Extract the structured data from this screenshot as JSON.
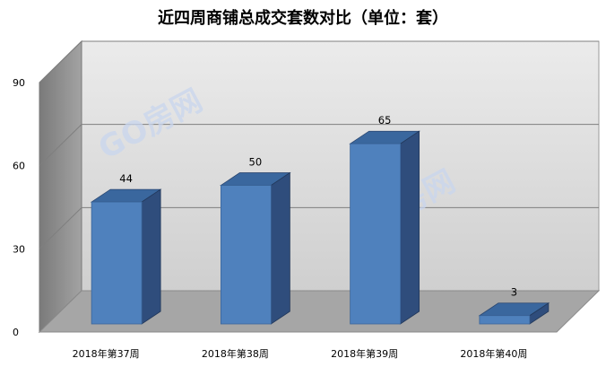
{
  "chart_data": {
    "type": "bar",
    "title": "近四周商铺总成交套数对比（单位：套）",
    "categories": [
      "2018年第37周",
      "2018年第38周",
      "2018年第39周",
      "2018年第40周"
    ],
    "values": [
      44,
      50,
      65,
      3
    ],
    "ylim": [
      0,
      90
    ],
    "yticks": [
      0,
      30,
      60,
      90
    ],
    "xlabel": "",
    "ylabel": "",
    "grid": true,
    "legend": "none",
    "style": "3d-bar",
    "colors": {
      "bar_front": "#4f81bd",
      "bar_side": "#2f4d7c",
      "bar_top": "#3a679e",
      "back_wall": "#d9d9d9",
      "side_wall": "#8c8c8c",
      "floor": "#a6a6a6",
      "gridline": "#7f7f7f"
    }
  },
  "watermark": {
    "text": "GO房网"
  }
}
